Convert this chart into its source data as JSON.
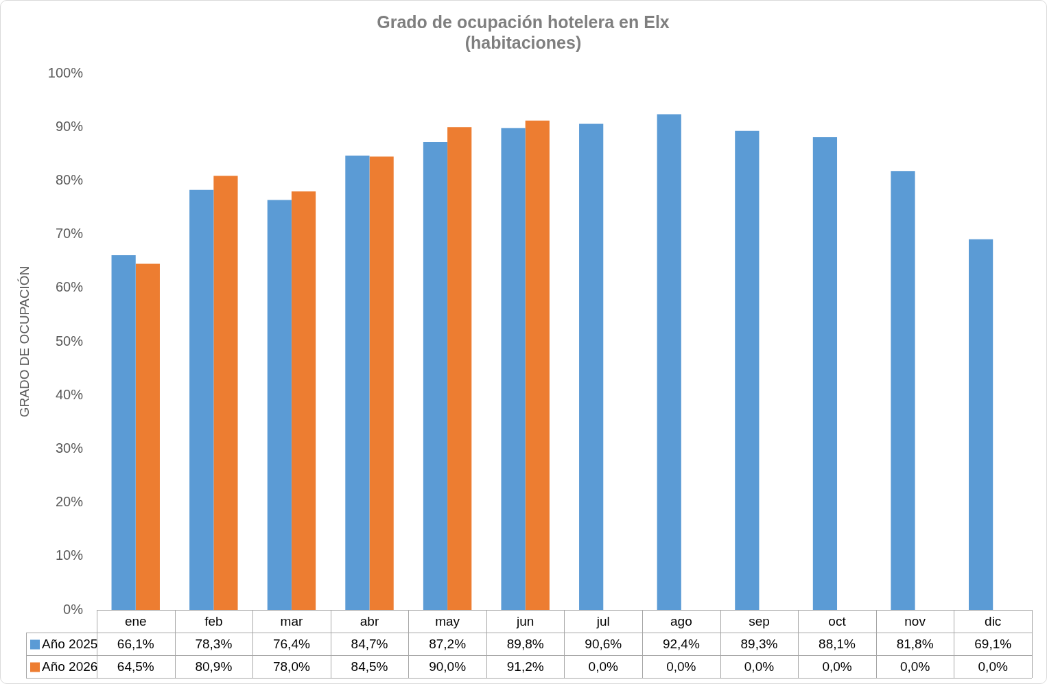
{
  "chart_data": {
    "type": "bar",
    "title": "Grado de ocupación hotelera en Elx\n(habitaciones)",
    "ylabel": "GRADO DE OCUPACIÓN",
    "categories": [
      "ene",
      "feb",
      "mar",
      "abr",
      "may",
      "jun",
      "jul",
      "ago",
      "sep",
      "oct",
      "nov",
      "dic"
    ],
    "series": [
      {
        "name": "Año 2025",
        "color": "#5b9bd5",
        "values": [
          66.1,
          78.3,
          76.4,
          84.7,
          87.2,
          89.8,
          90.6,
          92.4,
          89.3,
          88.1,
          81.8,
          69.1
        ],
        "value_labels": [
          "66,1%",
          "78,3%",
          "76,4%",
          "84,7%",
          "87,2%",
          "89,8%",
          "90,6%",
          "92,4%",
          "89,3%",
          "88,1%",
          "81,8%",
          "69,1%"
        ]
      },
      {
        "name": "Año 2026",
        "color": "#ed7d31",
        "values": [
          64.5,
          80.9,
          78.0,
          84.5,
          90.0,
          91.2,
          0.0,
          0.0,
          0.0,
          0.0,
          0.0,
          0.0
        ],
        "value_labels": [
          "64,5%",
          "80,9%",
          "78,0%",
          "84,5%",
          "90,0%",
          "91,2%",
          "0,0%",
          "0,0%",
          "0,0%",
          "0,0%",
          "0,0%",
          "0,0%"
        ]
      }
    ],
    "ylim": [
      0,
      100
    ],
    "yticks": [
      {
        "value": 0,
        "label": "0%"
      },
      {
        "value": 10,
        "label": "10%"
      },
      {
        "value": 20,
        "label": "20%"
      },
      {
        "value": 30,
        "label": "30%"
      },
      {
        "value": 40,
        "label": "40%"
      },
      {
        "value": 50,
        "label": "50%"
      },
      {
        "value": 60,
        "label": "60%"
      },
      {
        "value": 70,
        "label": "70%"
      },
      {
        "value": 80,
        "label": "80%"
      },
      {
        "value": 90,
        "label": "90%"
      },
      {
        "value": 100,
        "label": "100%"
      }
    ],
    "grid": false,
    "legend": "bottom"
  }
}
